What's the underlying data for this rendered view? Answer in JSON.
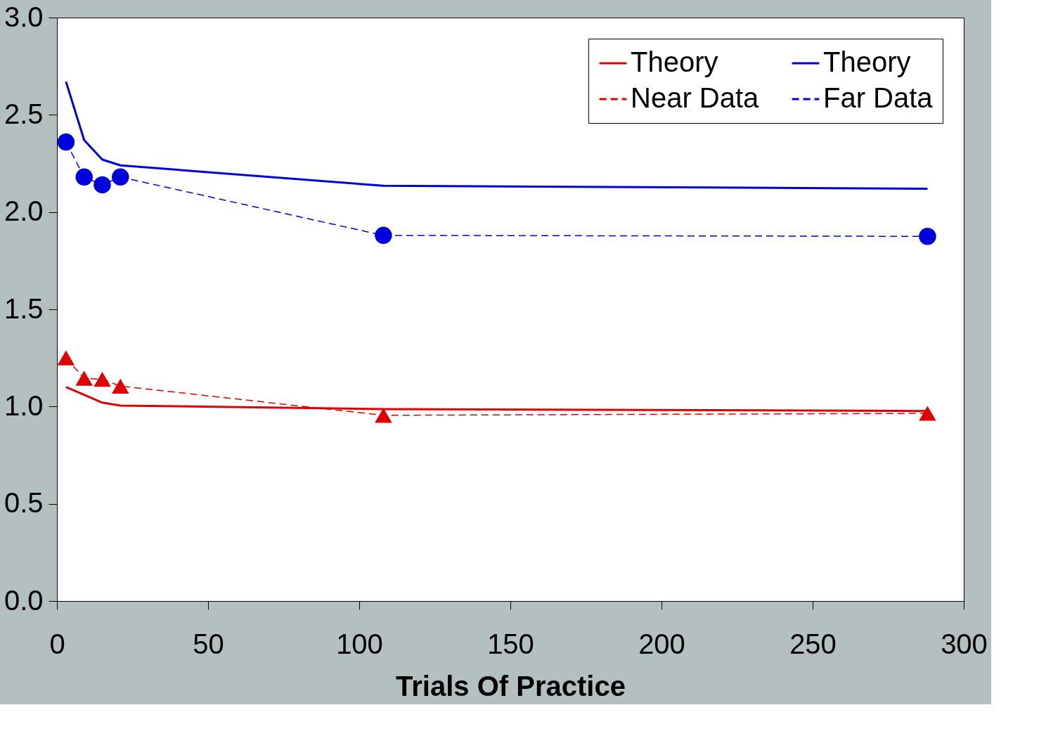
{
  "chart_data": {
    "type": "line",
    "xlabel": "Trials Of Practice",
    "xlim": [
      0,
      300
    ],
    "xticks": [
      0,
      50,
      100,
      150,
      200,
      250,
      300
    ],
    "ylim": [
      0,
      3.0
    ],
    "yticks": [
      {
        "value": 0,
        "label": "0.0"
      },
      {
        "value": 0.5,
        "label": "0.5"
      },
      {
        "value": 1,
        "label": "1.0"
      },
      {
        "value": 1.5,
        "label": "1.5"
      },
      {
        "value": 2,
        "label": "2.0"
      },
      {
        "value": 2.5,
        "label": "2.5"
      },
      {
        "value": 3,
        "label": "3.0"
      }
    ],
    "x": [
      3,
      9,
      15,
      21,
      108,
      288
    ],
    "series": [
      {
        "name": "Theory",
        "color": "#e00000",
        "values": [
          1.1,
          1.06,
          1.02,
          1.005,
          0.987,
          0.977
        ],
        "marker": "none",
        "line_style": "solid"
      },
      {
        "name": "Theory",
        "color": "#0000dd",
        "values": [
          2.67,
          2.37,
          2.27,
          2.24,
          2.135,
          2.12
        ],
        "marker": "none",
        "line_style": "solid"
      },
      {
        "name": "Near Data",
        "color": "#e00000",
        "values": [
          1.25,
          1.145,
          1.14,
          1.105,
          0.955,
          0.965
        ],
        "marker": "triangle",
        "line_style": "dashed"
      },
      {
        "name": "Far Data",
        "color": "#0000dd",
        "values": [
          2.36,
          2.18,
          2.14,
          2.18,
          1.88,
          1.875
        ],
        "marker": "circle",
        "line_style": "dashed"
      }
    ],
    "legend": "top right",
    "grid": false
  }
}
